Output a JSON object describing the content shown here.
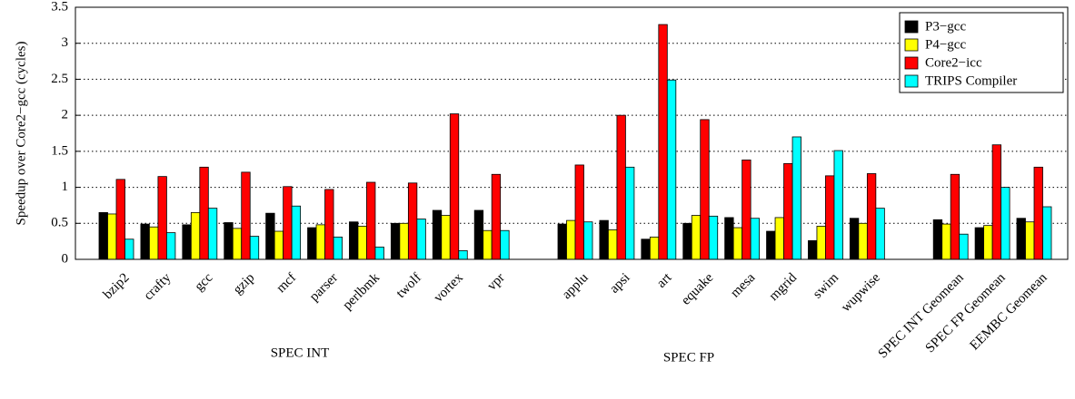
{
  "chart_data": {
    "type": "bar",
    "y_label": "Speedup over Core2−gcc (cycles)",
    "categories": [
      "bzip2",
      "crafty",
      "gcc",
      "gzip",
      "mcf",
      "parser",
      "perlbmk",
      "twolf",
      "vortex",
      "vpr",
      null,
      "applu",
      "apsi",
      "art",
      "equake",
      "mesa",
      "mgrid",
      "swim",
      "wupwise",
      null,
      "SPEC INT Geomean",
      "SPEC FP Geomean",
      "EEMBC Geomean"
    ],
    "series": [
      {
        "name": "P3−gcc",
        "color": "#000000",
        "values": [
          0.65,
          0.49,
          0.48,
          0.51,
          0.64,
          0.44,
          0.52,
          0.5,
          0.68,
          0.68,
          null,
          0.49,
          0.54,
          0.28,
          0.5,
          0.58,
          0.39,
          0.26,
          0.57,
          null,
          0.55,
          0.44,
          0.57
        ]
      },
      {
        "name": "P4−gcc",
        "color": "#ffff00",
        "values": [
          0.63,
          0.45,
          0.65,
          0.43,
          0.39,
          0.48,
          0.46,
          0.5,
          0.61,
          0.4,
          null,
          0.54,
          0.41,
          0.31,
          0.61,
          0.44,
          0.58,
          0.46,
          0.5,
          null,
          0.49,
          0.47,
          0.52
        ]
      },
      {
        "name": "Core2−icc",
        "color": "#ff0000",
        "values": [
          1.11,
          1.15,
          1.28,
          1.21,
          1.01,
          0.97,
          1.07,
          1.06,
          2.02,
          1.18,
          null,
          1.31,
          2.0,
          3.26,
          1.94,
          1.38,
          1.33,
          1.16,
          1.19,
          null,
          1.18,
          1.59,
          1.28
        ]
      },
      {
        "name": "TRIPS Compiler",
        "color": "#00ffff",
        "values": [
          0.28,
          0.37,
          0.71,
          0.32,
          0.74,
          0.31,
          0.17,
          0.56,
          0.12,
          0.4,
          null,
          0.52,
          1.28,
          2.49,
          0.6,
          0.57,
          1.7,
          1.51,
          0.71,
          null,
          0.35,
          1.0,
          0.73
        ]
      }
    ],
    "annotations": [
      "SPEC INT",
      "SPEC FP"
    ],
    "ylim": [
      0,
      3.5
    ],
    "yticks": [
      0,
      0.5,
      1,
      1.5,
      2,
      2.5,
      3,
      3.5
    ],
    "grid": true,
    "legend": "upper right"
  }
}
